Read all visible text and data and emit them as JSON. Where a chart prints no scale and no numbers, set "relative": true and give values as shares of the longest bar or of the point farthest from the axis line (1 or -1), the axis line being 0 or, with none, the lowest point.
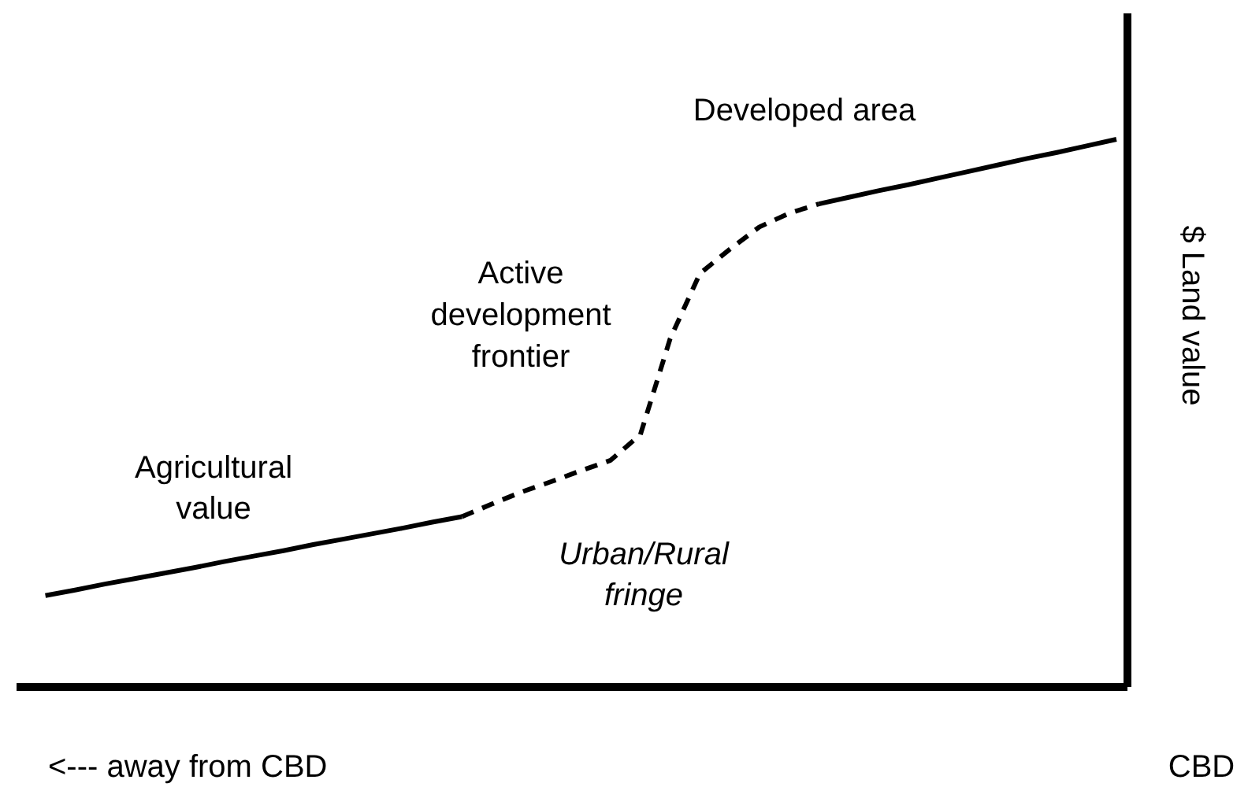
{
  "chart_data": {
    "type": "line",
    "relative": true,
    "xlabel": "<--- away from CBD",
    "ylabel": "$ Land value",
    "categories": [
      null,
      null,
      null,
      null,
      null,
      null,
      null,
      null,
      null,
      null,
      null,
      null,
      null,
      null,
      null,
      null,
      null,
      null,
      null,
      null,
      null,
      null,
      null,
      null,
      null,
      null,
      null,
      null,
      null,
      null,
      null,
      null,
      null,
      null,
      null,
      null,
      null
    ],
    "series": [
      {
        "color": "#000000",
        "line_style": "solid",
        "values": [
          0.167,
          0.177,
          0.188,
          0.198,
          0.208,
          0.218,
          0.229,
          0.239,
          0.249,
          0.26,
          0.27,
          0.28,
          0.29,
          0.301,
          0.311,
          null,
          null,
          null,
          null,
          null,
          null,
          null,
          null,
          null,
          null,
          null,
          null,
          null,
          null,
          null,
          null,
          null,
          null,
          null,
          null,
          null,
          null
        ]
      },
      {
        "color": "#000000",
        "line_style": "dashed",
        "values": [
          null,
          null,
          null,
          null,
          null,
          null,
          null,
          null,
          null,
          null,
          null,
          null,
          null,
          null,
          0.311,
          0.334,
          0.356,
          0.375,
          0.395,
          0.414,
          0.461,
          0.636,
          0.755,
          0.799,
          0.84,
          0.865,
          0.882,
          null,
          null,
          null,
          null,
          null,
          null,
          null,
          null,
          null,
          null
        ]
      },
      {
        "color": "#000000",
        "line_style": "solid",
        "values": [
          null,
          null,
          null,
          null,
          null,
          null,
          null,
          null,
          null,
          null,
          null,
          null,
          null,
          null,
          null,
          null,
          null,
          null,
          null,
          null,
          null,
          null,
          null,
          null,
          null,
          null,
          0.882,
          0.894,
          0.906,
          0.917,
          0.929,
          0.941,
          0.953,
          0.965,
          0.976,
          0.988,
          1.0
        ]
      }
    ],
    "annotations": [
      "Agricultural\nvalue",
      "Active\ndevelopment\nfrontier",
      "Developed area",
      "CBD",
      "Urban/Rural\nfringe"
    ]
  }
}
